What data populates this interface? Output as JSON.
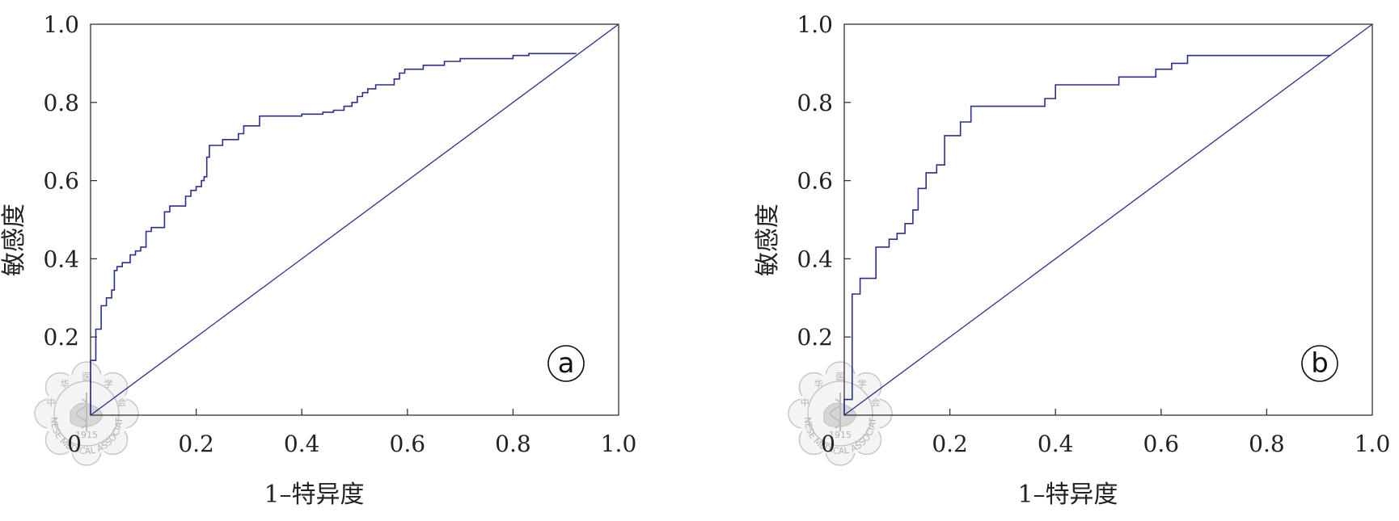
{
  "chart_data": [
    {
      "type": "line",
      "panel_label": "a",
      "xlabel": "1–特异度",
      "ylabel": "敏感度",
      "xlim": [
        0,
        1
      ],
      "ylim": [
        0,
        1
      ],
      "x_ticks": [
        "0",
        "0.2",
        "0.4",
        "0.6",
        "0.8",
        "1.0"
      ],
      "y_ticks": [
        "0.2",
        "0.4",
        "0.6",
        "0.8",
        "1.0"
      ],
      "grid": false,
      "colors": {
        "curve": "#2b2f8f",
        "axis": "#333333"
      },
      "series": [
        {
          "role": "roc",
          "step": true,
          "points": [
            [
              0,
              0
            ],
            [
              0,
              0.14
            ],
            [
              0.01,
              0.14
            ],
            [
              0.01,
              0.22
            ],
            [
              0.02,
              0.22
            ],
            [
              0.02,
              0.28
            ],
            [
              0.03,
              0.28
            ],
            [
              0.03,
              0.3
            ],
            [
              0.04,
              0.3
            ],
            [
              0.04,
              0.32
            ],
            [
              0.045,
              0.32
            ],
            [
              0.045,
              0.37
            ],
            [
              0.05,
              0.37
            ],
            [
              0.05,
              0.38
            ],
            [
              0.06,
              0.38
            ],
            [
              0.06,
              0.39
            ],
            [
              0.075,
              0.39
            ],
            [
              0.075,
              0.41
            ],
            [
              0.085,
              0.41
            ],
            [
              0.085,
              0.42
            ],
            [
              0.095,
              0.42
            ],
            [
              0.095,
              0.43
            ],
            [
              0.105,
              0.43
            ],
            [
              0.105,
              0.47
            ],
            [
              0.115,
              0.47
            ],
            [
              0.115,
              0.48
            ],
            [
              0.14,
              0.48
            ],
            [
              0.14,
              0.52
            ],
            [
              0.15,
              0.52
            ],
            [
              0.15,
              0.535
            ],
            [
              0.18,
              0.535
            ],
            [
              0.18,
              0.56
            ],
            [
              0.19,
              0.56
            ],
            [
              0.19,
              0.575
            ],
            [
              0.2,
              0.575
            ],
            [
              0.2,
              0.585
            ],
            [
              0.21,
              0.585
            ],
            [
              0.21,
              0.6
            ],
            [
              0.215,
              0.6
            ],
            [
              0.215,
              0.61
            ],
            [
              0.22,
              0.61
            ],
            [
              0.22,
              0.66
            ],
            [
              0.225,
              0.66
            ],
            [
              0.225,
              0.69
            ],
            [
              0.25,
              0.69
            ],
            [
              0.25,
              0.705
            ],
            [
              0.28,
              0.705
            ],
            [
              0.28,
              0.72
            ],
            [
              0.29,
              0.72
            ],
            [
              0.29,
              0.74
            ],
            [
              0.32,
              0.74
            ],
            [
              0.32,
              0.765
            ],
            [
              0.4,
              0.765
            ],
            [
              0.4,
              0.77
            ],
            [
              0.44,
              0.77
            ],
            [
              0.44,
              0.775
            ],
            [
              0.46,
              0.775
            ],
            [
              0.46,
              0.78
            ],
            [
              0.48,
              0.78
            ],
            [
              0.48,
              0.79
            ],
            [
              0.495,
              0.79
            ],
            [
              0.495,
              0.8
            ],
            [
              0.505,
              0.8
            ],
            [
              0.505,
              0.815
            ],
            [
              0.515,
              0.815
            ],
            [
              0.515,
              0.825
            ],
            [
              0.525,
              0.825
            ],
            [
              0.525,
              0.835
            ],
            [
              0.54,
              0.835
            ],
            [
              0.54,
              0.845
            ],
            [
              0.575,
              0.845
            ],
            [
              0.575,
              0.86
            ],
            [
              0.585,
              0.86
            ],
            [
              0.585,
              0.875
            ],
            [
              0.595,
              0.875
            ],
            [
              0.595,
              0.885
            ],
            [
              0.63,
              0.885
            ],
            [
              0.63,
              0.895
            ],
            [
              0.67,
              0.895
            ],
            [
              0.67,
              0.905
            ],
            [
              0.7,
              0.905
            ],
            [
              0.7,
              0.912
            ],
            [
              0.8,
              0.912
            ],
            [
              0.8,
              0.92
            ],
            [
              0.83,
              0.92
            ],
            [
              0.83,
              0.925
            ],
            [
              0.92,
              0.925
            ]
          ]
        },
        {
          "role": "reference",
          "step": false,
          "points": [
            [
              0,
              0
            ],
            [
              1,
              1
            ]
          ]
        }
      ]
    },
    {
      "type": "line",
      "panel_label": "b",
      "xlabel": "1–特异度",
      "ylabel": "敏感度",
      "xlim": [
        0,
        1
      ],
      "ylim": [
        0,
        1
      ],
      "x_ticks": [
        "0",
        "0.2",
        "0.4",
        "0.6",
        "0.8",
        "1.0"
      ],
      "y_ticks": [
        "0.2",
        "0.4",
        "0.6",
        "0.8",
        "1.0"
      ],
      "grid": false,
      "colors": {
        "curve": "#2b2f8f",
        "axis": "#333333"
      },
      "series": [
        {
          "role": "roc",
          "step": true,
          "points": [
            [
              0,
              0
            ],
            [
              0,
              0.04
            ],
            [
              0.015,
              0.04
            ],
            [
              0.015,
              0.31
            ],
            [
              0.03,
              0.31
            ],
            [
              0.03,
              0.35
            ],
            [
              0.06,
              0.35
            ],
            [
              0.06,
              0.43
            ],
            [
              0.085,
              0.43
            ],
            [
              0.085,
              0.45
            ],
            [
              0.1,
              0.45
            ],
            [
              0.1,
              0.465
            ],
            [
              0.115,
              0.465
            ],
            [
              0.115,
              0.49
            ],
            [
              0.13,
              0.49
            ],
            [
              0.13,
              0.525
            ],
            [
              0.14,
              0.525
            ],
            [
              0.14,
              0.58
            ],
            [
              0.155,
              0.58
            ],
            [
              0.155,
              0.62
            ],
            [
              0.175,
              0.62
            ],
            [
              0.175,
              0.64
            ],
            [
              0.19,
              0.64
            ],
            [
              0.19,
              0.715
            ],
            [
              0.22,
              0.715
            ],
            [
              0.22,
              0.75
            ],
            [
              0.24,
              0.75
            ],
            [
              0.24,
              0.79
            ],
            [
              0.38,
              0.79
            ],
            [
              0.38,
              0.81
            ],
            [
              0.4,
              0.81
            ],
            [
              0.4,
              0.845
            ],
            [
              0.52,
              0.845
            ],
            [
              0.52,
              0.865
            ],
            [
              0.59,
              0.865
            ],
            [
              0.59,
              0.885
            ],
            [
              0.62,
              0.885
            ],
            [
              0.62,
              0.9
            ],
            [
              0.65,
              0.9
            ],
            [
              0.65,
              0.92
            ],
            [
              0.92,
              0.92
            ]
          ]
        },
        {
          "role": "reference",
          "step": false,
          "points": [
            [
              0,
              0
            ],
            [
              1,
              1
            ]
          ]
        }
      ]
    }
  ],
  "seal": {
    "top_chars": [
      "中",
      "华",
      "医",
      "学",
      "会"
    ],
    "bottom_text": "CHINESE MEDICAL ASSOCIATION",
    "year": "1915",
    "icon": "chinese-medical-association-seal-icon"
  }
}
